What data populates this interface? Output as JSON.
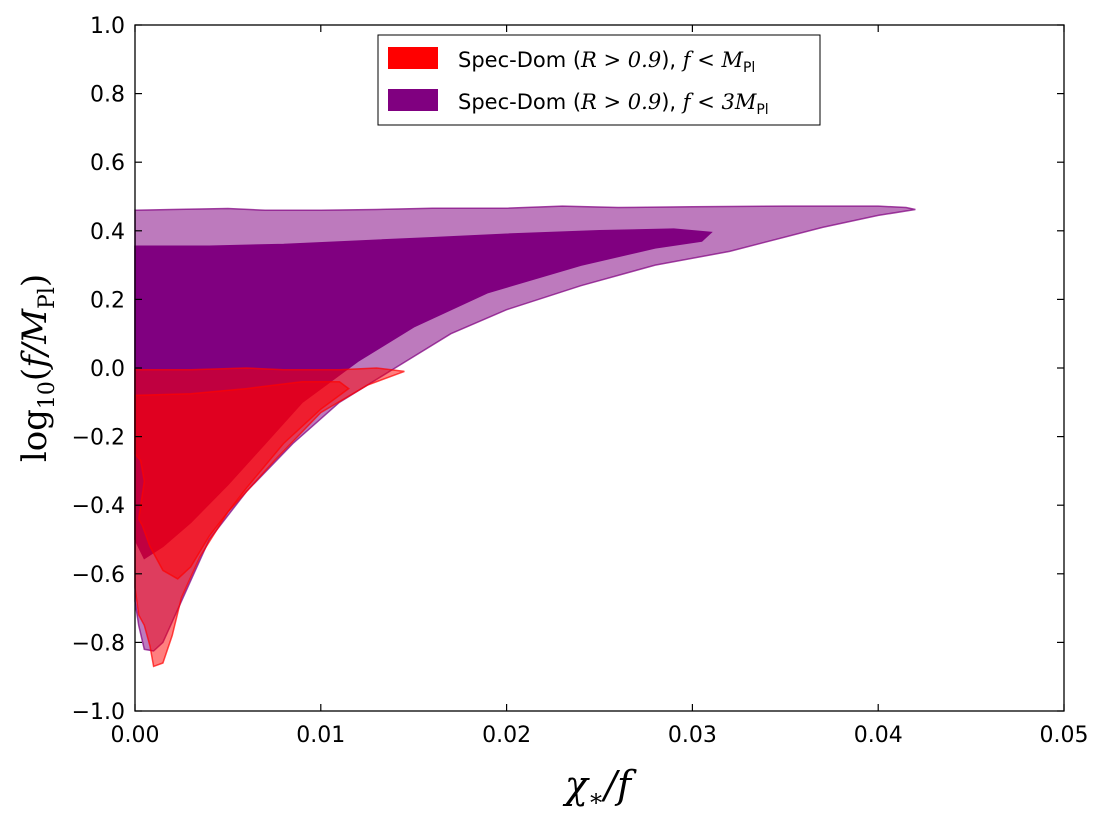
{
  "chart_data": {
    "type": "area",
    "xlabel": "χ*/f",
    "ylabel": "log10(f/MPl)",
    "xlim": [
      0.0,
      0.05
    ],
    "ylim": [
      -1.0,
      1.0
    ],
    "x_ticks": [
      0.0,
      0.01,
      0.02,
      0.03,
      0.04,
      0.05
    ],
    "x_tick_labels": [
      "0.00",
      "0.01",
      "0.02",
      "0.03",
      "0.04",
      "0.05"
    ],
    "y_ticks": [
      -1.0,
      -0.8,
      -0.6,
      -0.4,
      -0.2,
      0.0,
      0.2,
      0.4,
      0.6,
      0.8,
      1.0
    ],
    "y_tick_labels": [
      "−1.0",
      "−0.8",
      "−0.6",
      "−0.4",
      "−0.2",
      "0.0",
      "0.2",
      "0.4",
      "0.6",
      "0.8",
      "1.0"
    ],
    "grid": false,
    "legend_position": "top-center",
    "legend": [
      {
        "label_prefix": "Spec-Dom (",
        "label_math": "R > 0.9",
        "label_mid": "), ",
        "label_cond": "f < M",
        "label_sub": "Pl",
        "color": "#ff0000"
      },
      {
        "label_prefix": "Spec-Dom (",
        "label_math": "R > 0.9",
        "label_mid": "), ",
        "label_cond": "f < 3M",
        "label_sub": "Pl",
        "color": "#800080"
      }
    ],
    "series": [
      {
        "name": "Spec-Dom (R>0.9), f<3MPl",
        "color": "#800080",
        "regions": [
          {
            "level": "outer",
            "opacity": 0.52,
            "points": [
              [
                0.0,
                0.46
              ],
              [
                0.002,
                0.462
              ],
              [
                0.005,
                0.465
              ],
              [
                0.007,
                0.46
              ],
              [
                0.01,
                0.46
              ],
              [
                0.013,
                0.462
              ],
              [
                0.016,
                0.466
              ],
              [
                0.02,
                0.466
              ],
              [
                0.023,
                0.472
              ],
              [
                0.026,
                0.468
              ],
              [
                0.03,
                0.47
              ],
              [
                0.035,
                0.472
              ],
              [
                0.04,
                0.472
              ],
              [
                0.0415,
                0.468
              ],
              [
                0.042,
                0.462
              ],
              [
                0.04,
                0.445
              ],
              [
                0.037,
                0.41
              ],
              [
                0.032,
                0.34
              ],
              [
                0.028,
                0.3
              ],
              [
                0.024,
                0.24
              ],
              [
                0.02,
                0.17
              ],
              [
                0.017,
                0.1
              ],
              [
                0.014,
                0.0
              ],
              [
                0.011,
                -0.1
              ],
              [
                0.0085,
                -0.22
              ],
              [
                0.006,
                -0.36
              ],
              [
                0.004,
                -0.5
              ],
              [
                0.003,
                -0.62
              ],
              [
                0.002,
                -0.74
              ],
              [
                0.0015,
                -0.8
              ],
              [
                0.001,
                -0.825
              ],
              [
                0.0005,
                -0.82
              ],
              [
                0.0002,
                -0.75
              ],
              [
                0.0,
                -0.68
              ]
            ]
          },
          {
            "level": "inner",
            "opacity": 1.0,
            "points": [
              [
                0.0,
                0.355
              ],
              [
                0.004,
                0.355
              ],
              [
                0.008,
                0.36
              ],
              [
                0.012,
                0.37
              ],
              [
                0.016,
                0.38
              ],
              [
                0.02,
                0.39
              ],
              [
                0.025,
                0.4
              ],
              [
                0.029,
                0.405
              ],
              [
                0.031,
                0.395
              ],
              [
                0.0305,
                0.37
              ],
              [
                0.028,
                0.35
              ],
              [
                0.024,
                0.3
              ],
              [
                0.019,
                0.22
              ],
              [
                0.015,
                0.12
              ],
              [
                0.012,
                0.02
              ],
              [
                0.009,
                -0.1
              ],
              [
                0.007,
                -0.22
              ],
              [
                0.005,
                -0.34
              ],
              [
                0.003,
                -0.45
              ],
              [
                0.0015,
                -0.52
              ],
              [
                0.0005,
                -0.555
              ],
              [
                0.0,
                -0.5
              ]
            ]
          }
        ]
      },
      {
        "name": "Spec-Dom (R>0.9), f<MPl",
        "color": "#ff0000",
        "regions": [
          {
            "level": "outer",
            "opacity": 0.5,
            "points": [
              [
                0.0,
                -0.005
              ],
              [
                0.003,
                -0.005
              ],
              [
                0.006,
                -0.0
              ],
              [
                0.008,
                -0.005
              ],
              [
                0.011,
                -0.005
              ],
              [
                0.013,
                -0.0
              ],
              [
                0.0145,
                -0.01
              ],
              [
                0.0125,
                -0.05
              ],
              [
                0.01,
                -0.13
              ],
              [
                0.0075,
                -0.27
              ],
              [
                0.005,
                -0.42
              ],
              [
                0.0035,
                -0.55
              ],
              [
                0.0025,
                -0.67
              ],
              [
                0.002,
                -0.78
              ],
              [
                0.0015,
                -0.86
              ],
              [
                0.001,
                -0.87
              ],
              [
                0.0008,
                -0.81
              ],
              [
                0.0005,
                -0.75
              ],
              [
                0.0002,
                -0.72
              ],
              [
                0.0,
                -0.64
              ]
            ]
          },
          {
            "level": "inner",
            "opacity": 0.5,
            "points": [
              [
                0.0,
                -0.08
              ],
              [
                0.003,
                -0.075
              ],
              [
                0.006,
                -0.06
              ],
              [
                0.009,
                -0.04
              ],
              [
                0.011,
                -0.04
              ],
              [
                0.0115,
                -0.06
              ],
              [
                0.01,
                -0.12
              ],
              [
                0.008,
                -0.22
              ],
              [
                0.006,
                -0.35
              ],
              [
                0.004,
                -0.49
              ],
              [
                0.003,
                -0.58
              ],
              [
                0.0023,
                -0.615
              ],
              [
                0.0015,
                -0.59
              ],
              [
                0.0008,
                -0.52
              ],
              [
                0.0004,
                -0.46
              ],
              [
                0.0002,
                -0.44
              ],
              [
                0.0005,
                -0.33
              ],
              [
                0.0003,
                -0.27
              ],
              [
                0.0,
                -0.25
              ]
            ]
          }
        ]
      }
    ]
  }
}
